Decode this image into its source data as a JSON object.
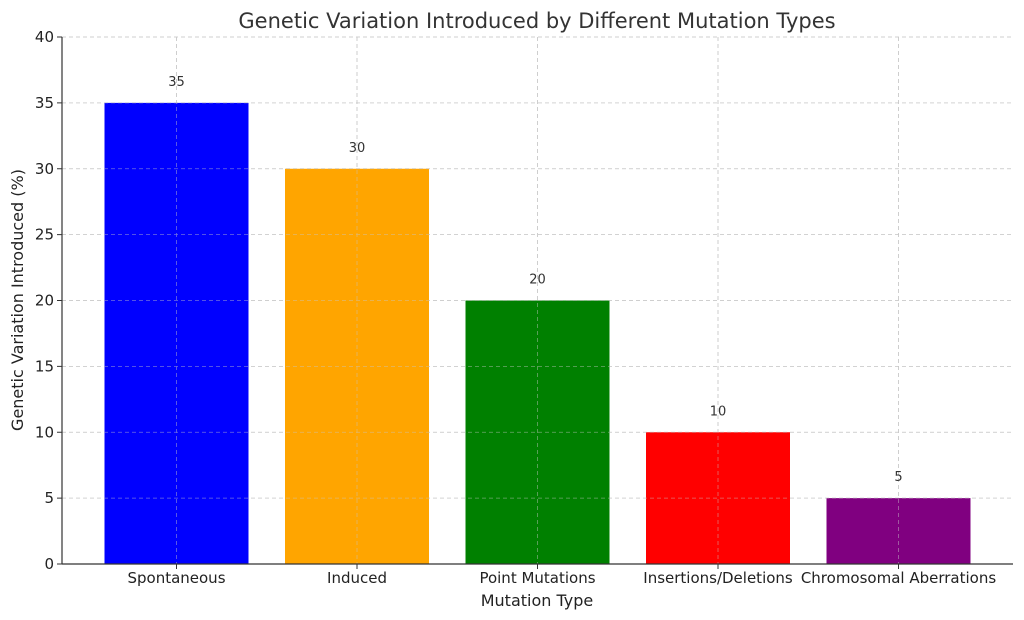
{
  "chart_data": {
    "type": "bar",
    "title": "Genetic Variation Introduced by Different Mutation Types",
    "xlabel": "Mutation Type",
    "ylabel": "Genetic Variation Introduced (%)",
    "categories": [
      "Spontaneous",
      "Induced",
      "Point Mutations",
      "Insertions/Deletions",
      "Chromosomal Aberrations"
    ],
    "values": [
      35,
      30,
      20,
      10,
      5
    ],
    "colors": [
      "#0000ff",
      "#ffa500",
      "#008000",
      "#ff0000",
      "#800080"
    ],
    "ylim": [
      0,
      40
    ],
    "yticks": [
      0,
      5,
      10,
      15,
      20,
      25,
      30,
      35,
      40
    ],
    "grid": true,
    "data_labels": true
  }
}
